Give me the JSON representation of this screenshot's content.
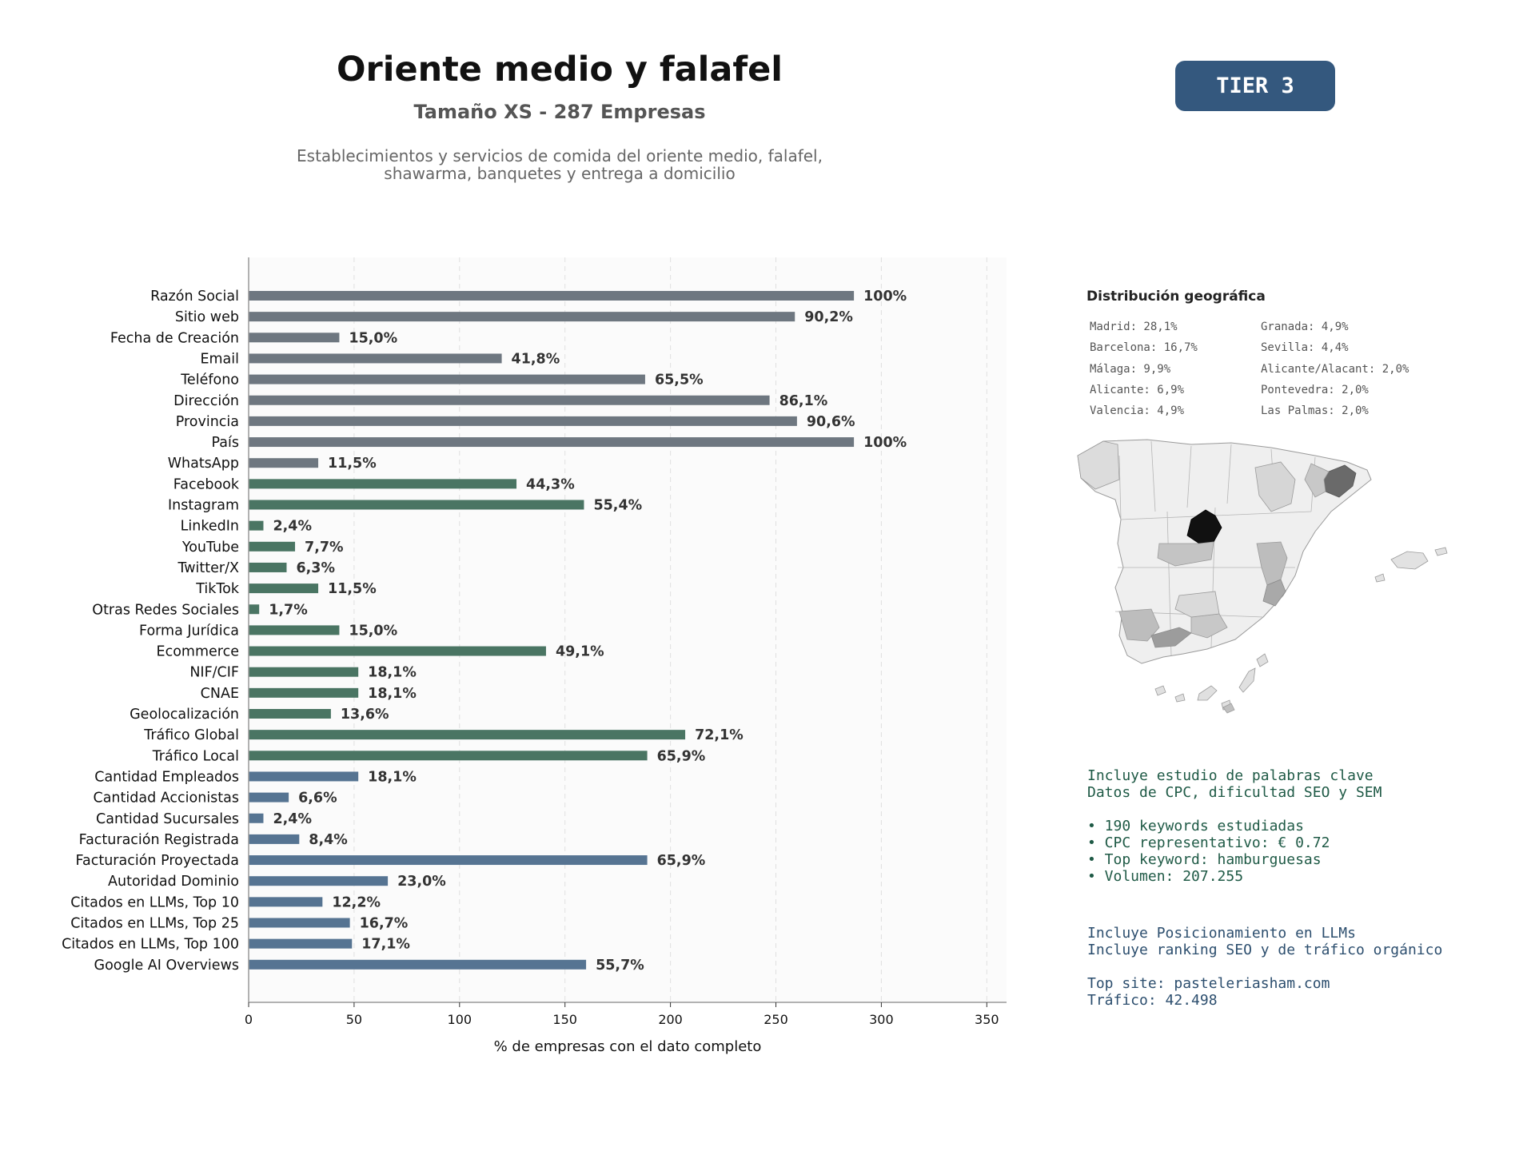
{
  "header": {
    "title": "Oriente medio y falafel",
    "subtitle": "Tamaño XS - 287 Empresas",
    "description_line1": "Establecimientos y servicios de comida del oriente medio, falafel,",
    "description_line2": "shawarma, banquetes y entrega a domicilio",
    "tier": "TIER 3"
  },
  "chart_data": {
    "type": "bar",
    "orientation": "horizontal",
    "xlabel": "% de empresas con el dato completo",
    "xlim": [
      0,
      360
    ],
    "xticks": [
      0,
      50,
      100,
      150,
      200,
      250,
      300,
      350
    ],
    "grid": "vertical dashed",
    "total": 287,
    "colors": {
      "group1": "#6e7780",
      "group2": "#4a7563",
      "group3": "#567492"
    },
    "categories": [
      "Razón Social",
      "Sitio web",
      "Fecha de Creación",
      "Email",
      "Teléfono",
      "Dirección",
      "Provincia",
      "País",
      "WhatsApp",
      "Facebook",
      "Instagram",
      "LinkedIn",
      "YouTube",
      "Twitter/X",
      "TikTok",
      "Otras Redes Sociales",
      "Forma Jurídica",
      "Ecommerce",
      "NIF/CIF",
      "CNAE",
      "Geolocalización",
      "Tráfico Global",
      "Tráfico Local",
      "Cantidad Empleados",
      "Cantidad Accionistas",
      "Cantidad Sucursales",
      "Facturación Registrada",
      "Facturación Proyectada",
      "Autoridad Dominio",
      "Citados en LLMs, Top 10",
      "Citados en LLMs, Top 25",
      "Citados en LLMs, Top 100",
      "Google AI Overviews"
    ],
    "values": [
      287,
      259,
      43,
      120,
      188,
      247,
      260,
      287,
      33,
      127,
      159,
      7,
      22,
      18,
      33,
      5,
      43,
      141,
      52,
      52,
      39,
      207,
      189,
      52,
      19,
      7,
      24,
      189,
      66,
      35,
      48,
      49,
      160
    ],
    "labels": [
      "100%",
      "90,2%",
      "15,0%",
      "41,8%",
      "65,5%",
      "86,1%",
      "90,6%",
      "100%",
      "11,5%",
      "44,3%",
      "55,4%",
      "2,4%",
      "7,7%",
      "6,3%",
      "11,5%",
      "1,7%",
      "15,0%",
      "49,1%",
      "18,1%",
      "18,1%",
      "13,6%",
      "72,1%",
      "65,9%",
      "18,1%",
      "6,6%",
      "2,4%",
      "8,4%",
      "65,9%",
      "23,0%",
      "12,2%",
      "16,7%",
      "17,1%",
      "55,7%"
    ],
    "groups": [
      1,
      1,
      1,
      1,
      1,
      1,
      1,
      1,
      1,
      2,
      2,
      2,
      2,
      2,
      2,
      2,
      2,
      2,
      2,
      2,
      2,
      2,
      2,
      3,
      3,
      3,
      3,
      3,
      3,
      3,
      3,
      3,
      3
    ]
  },
  "geo": {
    "title": "Distribución geográfica",
    "col1": [
      "Madrid: 28,1%",
      "Barcelona: 16,7%",
      "Málaga: 9,9%",
      "Alicante: 6,9%",
      "Valencia: 4,9%"
    ],
    "col2": [
      "Granada: 4,9%",
      "Sevilla: 4,4%",
      "Alicante/Alacant: 2,0%",
      "Pontevedra: 2,0%",
      "Las Palmas: 2,0%"
    ]
  },
  "seo": {
    "line1": "Incluye estudio de palabras clave",
    "line2": "Datos de CPC, dificultad SEO y SEM",
    "bullet1": "• 190 keywords estudiadas",
    "bullet2": "• CPC representativo: € 0.72",
    "bullet3": "• Top keyword: hamburguesas",
    "bullet4": "• Volumen: 207.255"
  },
  "llm": {
    "line1": "Incluye Posicionamiento en LLMs",
    "line2": "Incluye ranking SEO y de tráfico orgánico",
    "top_site": "Top site: pasteleriasham.com",
    "traffic": "Tráfico: 42.498"
  }
}
